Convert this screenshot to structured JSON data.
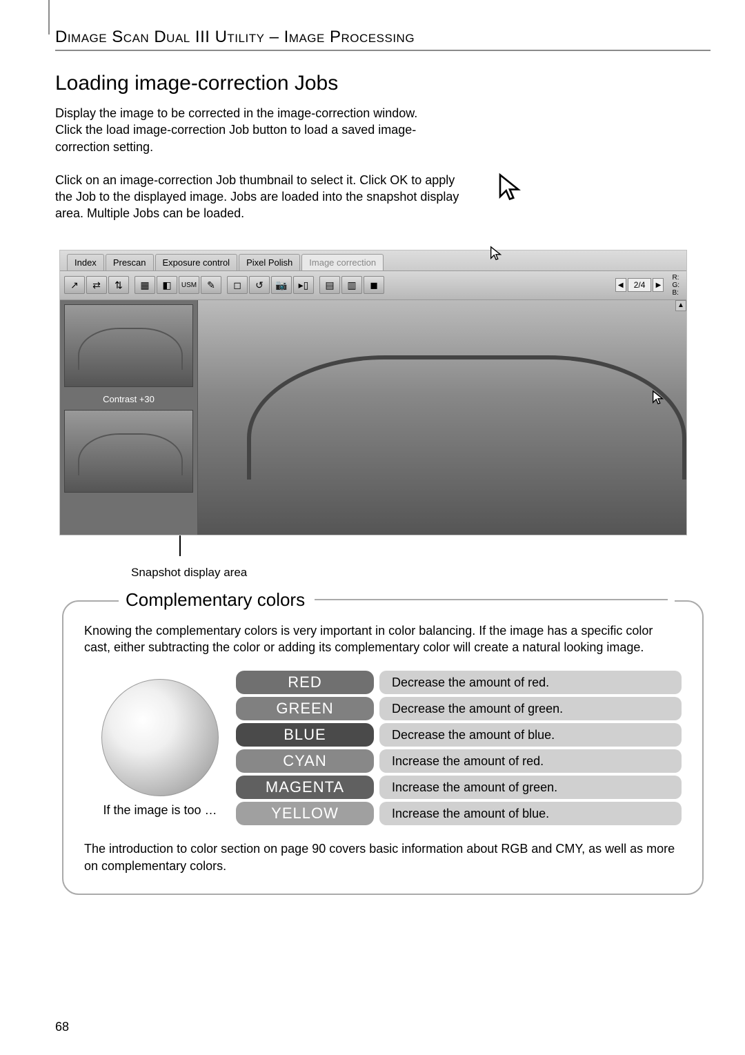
{
  "header": "Dimage Scan Dual III Utility – Image Processing",
  "section_title": "Loading image-correction Jobs",
  "para1": "Display the image to be corrected in the image-correction window. Click the load image-correction Job button to load a saved image-correction setting.",
  "para2": "Click on an image-correction Job thumbnail to select it. Click OK to apply the Job to the displayed image. Jobs are loaded into the snapshot display area. Multiple Jobs can be loaded.",
  "screenshot": {
    "tabs": [
      "Index",
      "Prescan",
      "Exposure control",
      "Pixel Polish",
      "Image correction"
    ],
    "active_tab": 4,
    "toolbar_icons": [
      "↗",
      "⇄",
      "⇅",
      "▦",
      "◧",
      "USM",
      "✎",
      "◻",
      "↺",
      "📷",
      "▸▯",
      "▤",
      "▥",
      "◼"
    ],
    "pager": "2/4",
    "rgb": [
      "R:",
      "G:",
      "B:"
    ],
    "thumb_label": "Contrast +30"
  },
  "snapshot_label": "Snapshot display area",
  "comp": {
    "title": "Complementary colors",
    "intro": "Knowing the complementary colors is very important in color balancing. If the image has a specific color cast, either subtracting the color or adding its complementary color will create a natural looking image.",
    "if_text": "If the image is too …",
    "rows": [
      {
        "label": "Red",
        "color": "#707070",
        "action": "Decrease the amount of red."
      },
      {
        "label": "Green",
        "color": "#808080",
        "action": "Decrease the amount of green."
      },
      {
        "label": "Blue",
        "color": "#4a4a4a",
        "action": "Decrease the amount of blue."
      },
      {
        "label": "Cyan",
        "color": "#888888",
        "action": "Increase the amount of red."
      },
      {
        "label": "Magenta",
        "color": "#606060",
        "action": "Increase the amount of green."
      },
      {
        "label": "Yellow",
        "color": "#a0a0a0",
        "action": "Increase the amount of blue."
      }
    ],
    "footer": "The introduction to color section on page 90 covers basic information about RGB and CMY, as well as more on complementary colors."
  },
  "page_number": "68"
}
